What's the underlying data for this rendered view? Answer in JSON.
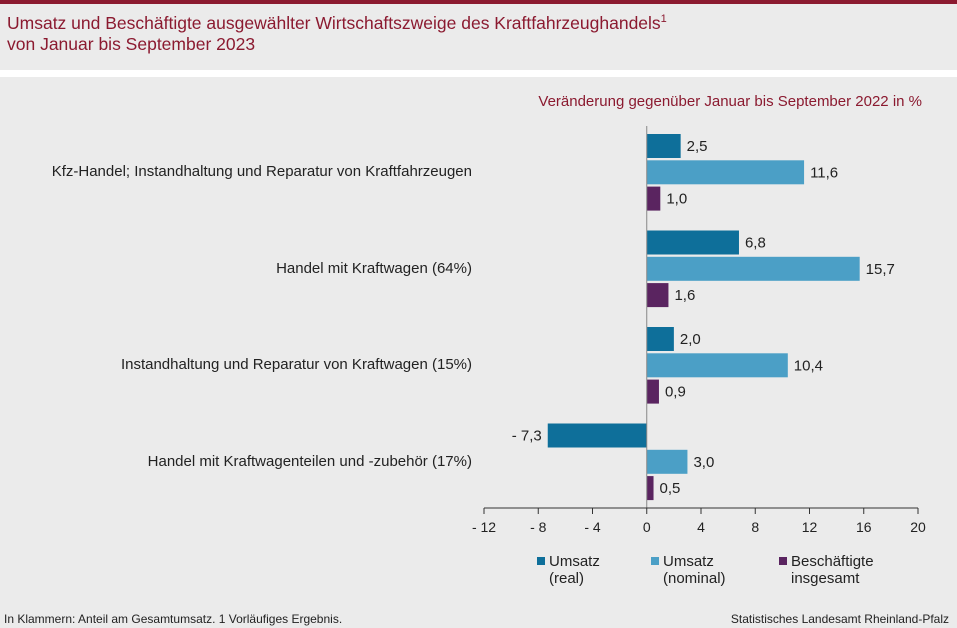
{
  "title": {
    "line1": "Umsatz und Beschäftigte ausgewählter Wirtschaftszweige des Kraftfahrzeughandels",
    "line1_sup": "1",
    "line2": "von Januar bis September 2023"
  },
  "chart_data": {
    "type": "bar",
    "orientation": "horizontal",
    "subtitle": "Veränderung gegenüber Januar bis September 2022 in %",
    "categories": [
      "Kfz-Handel; Instandhaltung und Reparatur von Kraftfahrzeugen",
      "Handel mit Kraftwagen (64%)",
      "Instandhaltung und Reparatur von Kraftwagen (15%)",
      "Handel mit Kraftwagenteilen und -zubehör (17%)"
    ],
    "series": [
      {
        "name": "Umsatz (real)",
        "color": "#0e6f9a",
        "values": [
          2.5,
          6.8,
          2.0,
          -7.3
        ],
        "labels": [
          "2,5",
          "6,8",
          "2,0",
          "- 7,3"
        ]
      },
      {
        "name": "Umsatz (nominal)",
        "color": "#4b9fc6",
        "values": [
          11.6,
          15.7,
          10.4,
          3.0
        ],
        "labels": [
          "11,6",
          "15,7",
          "10,4",
          "3,0"
        ]
      },
      {
        "name": "Beschäftigte insgesamt",
        "color": "#5a2460",
        "values": [
          1.0,
          1.6,
          0.9,
          0.5
        ],
        "labels": [
          "1,0",
          "1,6",
          "0,9",
          "0,5"
        ]
      }
    ],
    "xlim": [
      -12,
      20
    ],
    "xticks": [
      -12,
      -8,
      -4,
      0,
      4,
      8,
      12,
      16,
      20
    ],
    "xtick_labels": [
      "- 12",
      "- 8",
      "- 4",
      "0",
      "4",
      "8",
      "12",
      "16",
      "20"
    ],
    "grid": false,
    "legend_position": "bottom"
  },
  "legend": [
    {
      "line1": "Umsatz",
      "line2": "(real)",
      "color": "#0e6f9a"
    },
    {
      "line1": "Umsatz",
      "line2": "(nominal)",
      "color": "#4b9fc6"
    },
    {
      "line1": "Beschäftigte",
      "line2": "insgesamt",
      "color": "#5a2460"
    }
  ],
  "footnote": "In Klammern: Anteil am Gesamtumsatz. 1 Vorläufiges Ergebnis.",
  "source": "Statistisches Landesamt Rheinland-Pfalz"
}
